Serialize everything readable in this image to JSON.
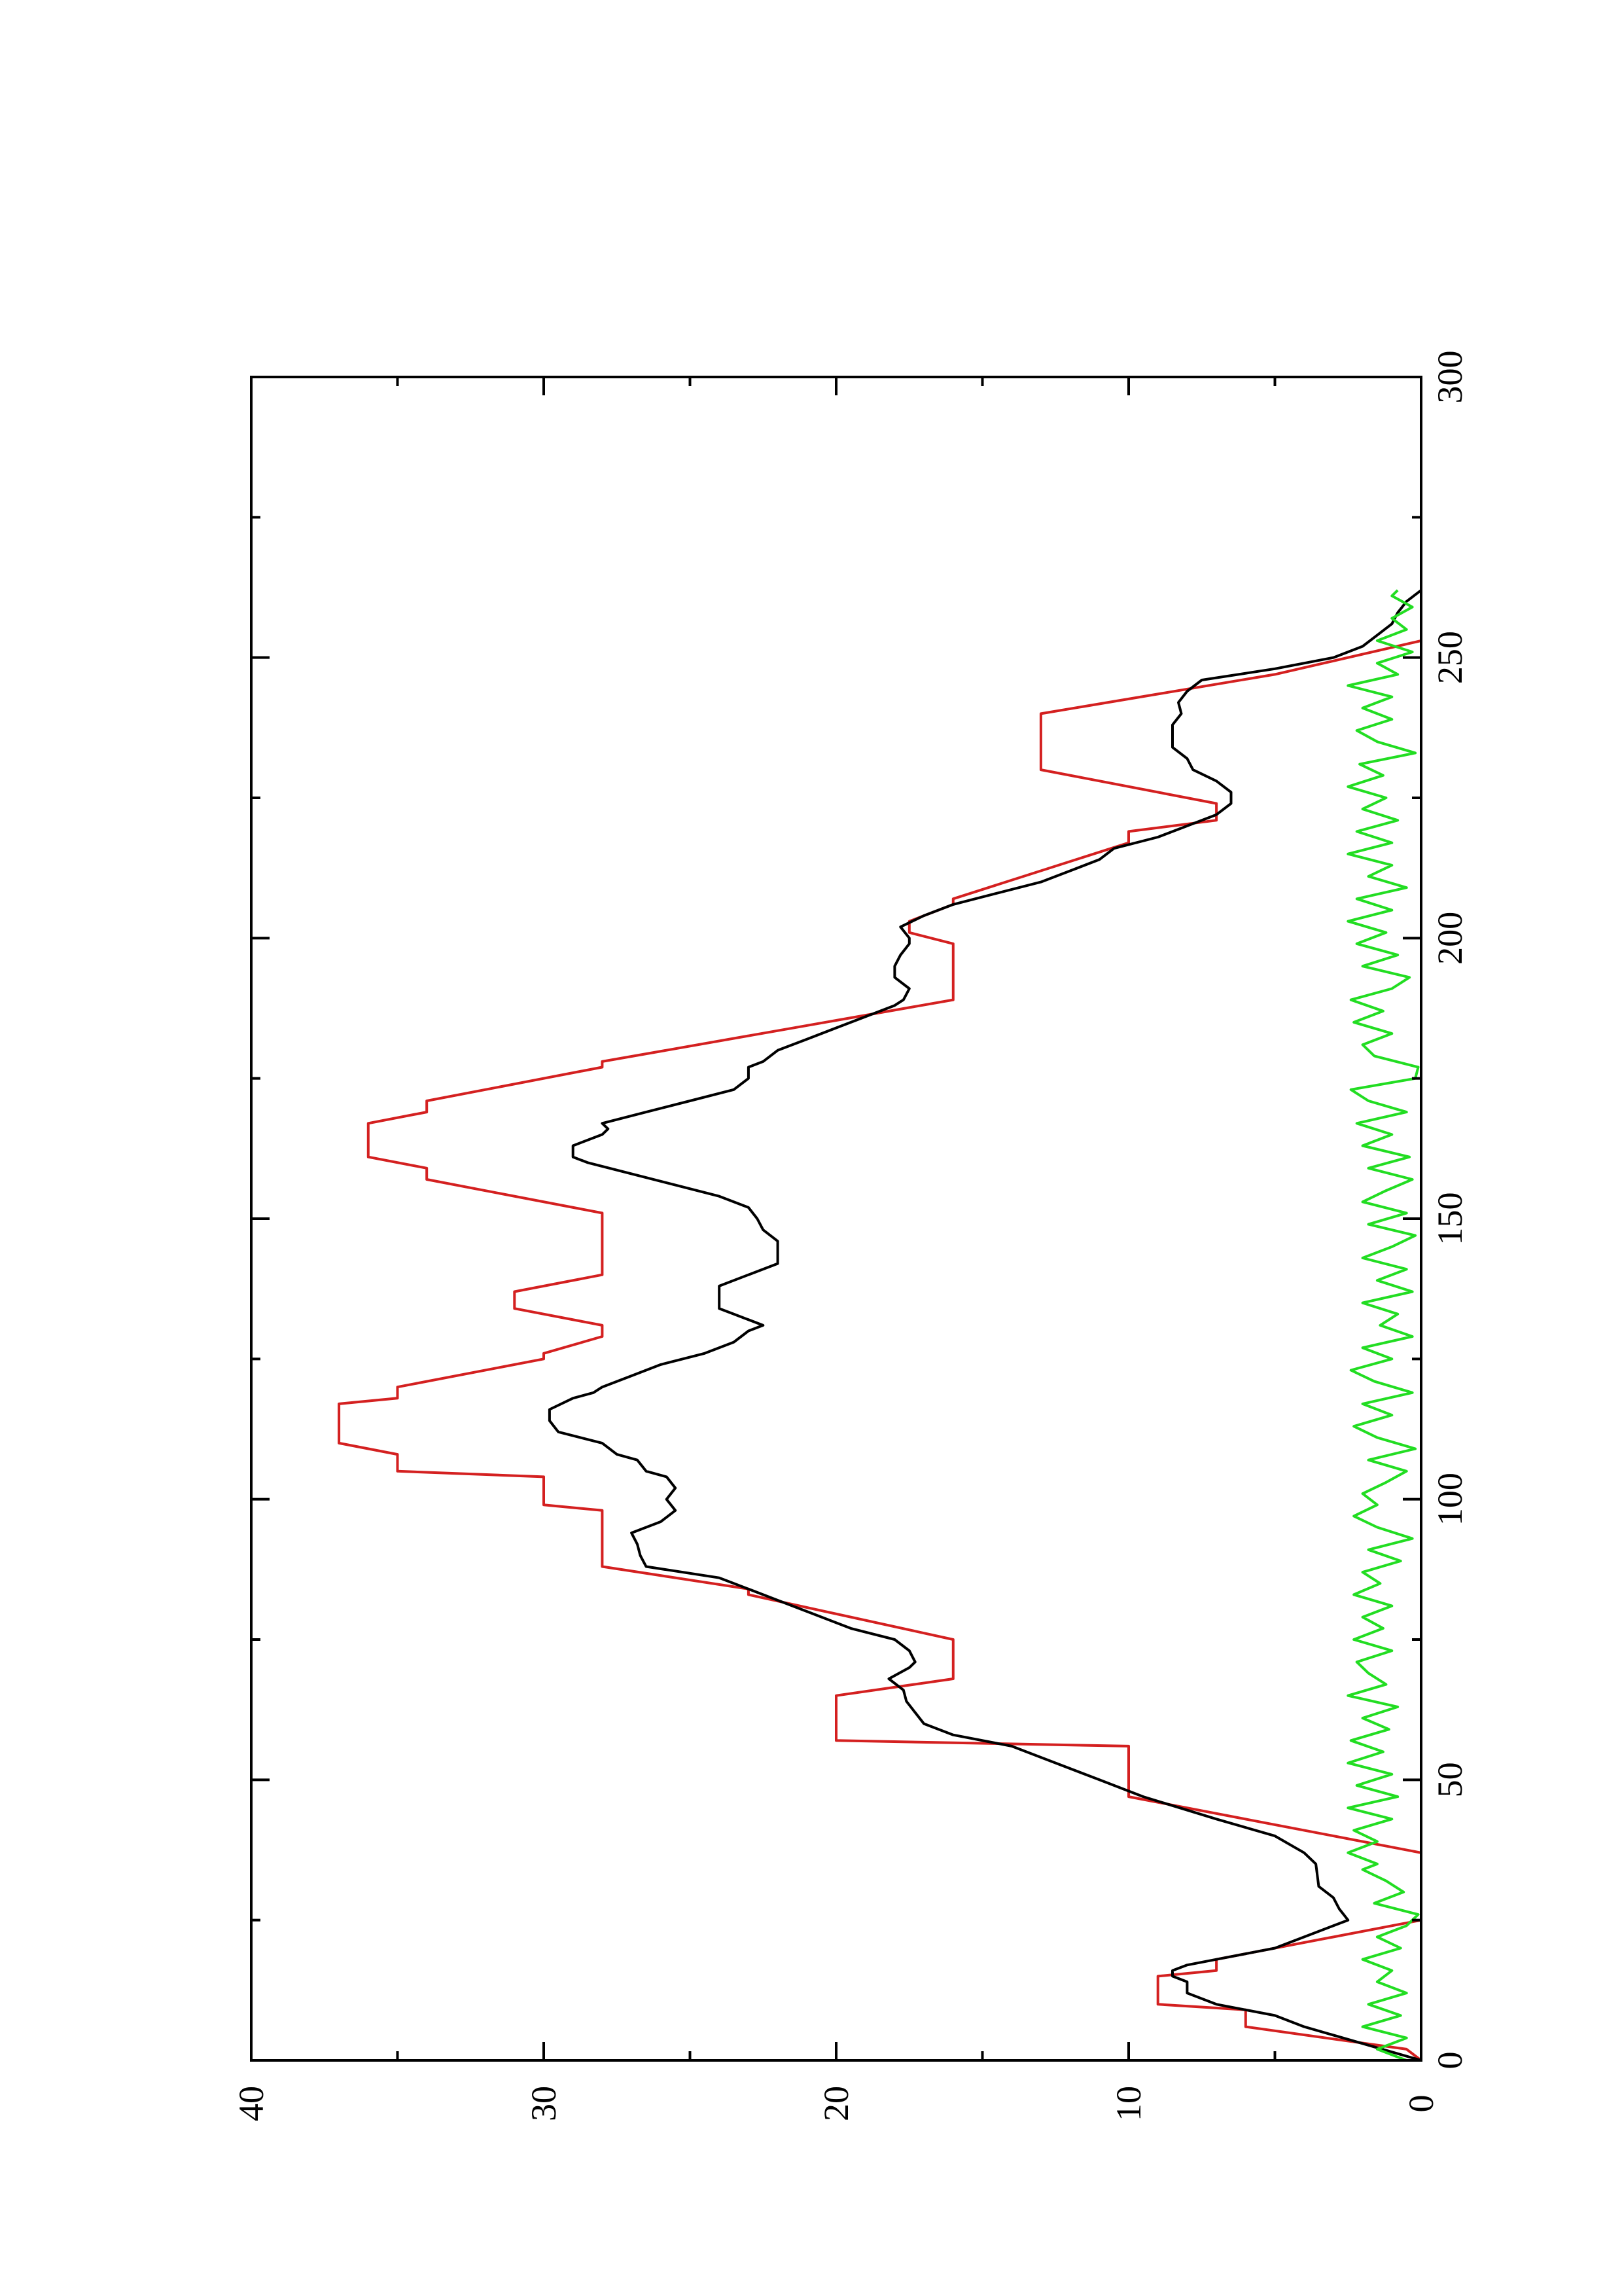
{
  "chart_data": {
    "type": "line",
    "orientation": "rotated 90 degrees counter-clockwise (x axis runs vertically, y axis runs horizontally)",
    "title": "",
    "xlabel": "",
    "ylabel": "",
    "xlim": [
      0,
      300
    ],
    "ylim": [
      0,
      40
    ],
    "xticks": [
      0,
      50,
      100,
      150,
      200,
      250,
      300
    ],
    "xtick_labels": [
      "0",
      "50",
      "100",
      "150",
      "200",
      "250",
      "300"
    ],
    "yticks": [
      0,
      10,
      20,
      30,
      40
    ],
    "ytick_labels": [
      "0",
      "10",
      "20",
      "30",
      "40"
    ],
    "grid": false,
    "legend": "none",
    "series": [
      {
        "color": "#d42020",
        "points": [
          [
            0,
            0
          ],
          [
            2,
            0.5
          ],
          [
            6,
            6
          ],
          [
            9,
            6
          ],
          [
            10,
            9
          ],
          [
            15,
            9
          ],
          [
            16,
            7
          ],
          [
            18,
            7
          ],
          [
            19,
            6
          ],
          [
            25,
            0
          ],
          [
            26,
            0
          ],
          [
            36,
            0
          ],
          [
            37,
            0
          ],
          [
            47,
            10
          ],
          [
            56,
            10
          ],
          [
            57,
            20
          ],
          [
            65,
            20
          ],
          [
            68,
            16
          ],
          [
            75,
            16
          ],
          [
            83,
            23
          ],
          [
            84,
            23
          ],
          [
            88,
            28
          ],
          [
            98,
            28
          ],
          [
            99,
            30
          ],
          [
            104,
            30
          ],
          [
            105,
            35
          ],
          [
            108,
            35
          ],
          [
            110,
            37
          ],
          [
            117,
            37
          ],
          [
            118,
            35
          ],
          [
            120,
            35
          ],
          [
            125,
            30
          ],
          [
            126,
            30
          ],
          [
            129,
            28
          ],
          [
            131,
            28
          ],
          [
            134,
            31
          ],
          [
            137,
            31
          ],
          [
            140,
            28
          ],
          [
            151,
            28
          ],
          [
            157,
            34
          ],
          [
            159,
            34
          ],
          [
            161,
            36
          ],
          [
            167,
            36
          ],
          [
            169,
            34
          ],
          [
            171,
            34
          ],
          [
            177,
            28
          ],
          [
            178,
            28
          ],
          [
            189,
            16
          ],
          [
            199,
            16
          ],
          [
            201,
            17.5
          ],
          [
            203,
            17.5
          ],
          [
            206,
            16
          ],
          [
            207,
            16
          ],
          [
            217,
            10
          ],
          [
            219,
            10
          ],
          [
            221,
            7
          ],
          [
            224,
            7
          ],
          [
            230,
            13
          ],
          [
            240,
            13
          ],
          [
            247,
            5
          ],
          [
            253,
            0
          ]
        ]
      },
      {
        "color": "#000000",
        "points": [
          [
            0,
            0
          ],
          [
            3,
            2
          ],
          [
            6,
            4
          ],
          [
            8,
            5
          ],
          [
            10,
            7
          ],
          [
            12,
            8
          ],
          [
            14,
            8
          ],
          [
            15,
            8.5
          ],
          [
            16,
            8.5
          ],
          [
            17,
            8
          ],
          [
            18,
            7
          ],
          [
            19,
            6
          ],
          [
            20,
            5
          ],
          [
            22,
            4
          ],
          [
            24,
            3
          ],
          [
            25,
            2.5
          ],
          [
            27,
            2.8
          ],
          [
            29,
            3
          ],
          [
            31,
            3.5
          ],
          [
            35,
            3.6
          ],
          [
            37,
            4
          ],
          [
            40,
            5
          ],
          [
            43,
            7
          ],
          [
            47,
            9.5
          ],
          [
            50,
            11
          ],
          [
            53,
            12.5
          ],
          [
            56,
            14
          ],
          [
            58,
            16
          ],
          [
            60,
            17
          ],
          [
            62,
            17.3
          ],
          [
            64,
            17.6
          ],
          [
            66,
            17.7
          ],
          [
            68,
            18.2
          ],
          [
            70,
            17.5
          ],
          [
            71,
            17.3
          ],
          [
            73,
            17.5
          ],
          [
            75,
            18
          ],
          [
            77,
            19.5
          ],
          [
            80,
            21
          ],
          [
            82,
            22
          ],
          [
            84,
            23
          ],
          [
            86,
            24
          ],
          [
            88,
            26.5
          ],
          [
            90,
            26.7
          ],
          [
            92,
            26.8
          ],
          [
            94,
            27
          ],
          [
            96,
            26
          ],
          [
            98,
            25.5
          ],
          [
            100,
            25.8
          ],
          [
            102,
            25.5
          ],
          [
            104,
            25.8
          ],
          [
            105,
            26.5
          ],
          [
            107,
            26.8
          ],
          [
            108,
            27.5
          ],
          [
            110,
            28
          ],
          [
            112,
            29.5
          ],
          [
            114,
            29.8
          ],
          [
            116,
            29.8
          ],
          [
            118,
            29
          ],
          [
            119,
            28.3
          ],
          [
            120,
            28
          ],
          [
            122,
            27
          ],
          [
            124,
            26
          ],
          [
            126,
            24.5
          ],
          [
            128,
            23.5
          ],
          [
            130,
            23
          ],
          [
            131,
            22.5
          ],
          [
            133,
            23.5
          ],
          [
            134,
            24
          ],
          [
            136,
            24
          ],
          [
            138,
            24
          ],
          [
            140,
            23
          ],
          [
            142,
            22
          ],
          [
            144,
            22
          ],
          [
            146,
            22
          ],
          [
            148,
            22.5
          ],
          [
            150,
            22.7
          ],
          [
            152,
            23
          ],
          [
            154,
            24
          ],
          [
            156,
            25.5
          ],
          [
            158,
            27
          ],
          [
            160,
            28.5
          ],
          [
            161,
            29
          ],
          [
            163,
            29
          ],
          [
            165,
            28
          ],
          [
            166,
            27.8
          ],
          [
            167,
            28
          ],
          [
            169,
            26.5
          ],
          [
            171,
            25
          ],
          [
            173,
            23.5
          ],
          [
            175,
            23
          ],
          [
            177,
            23
          ],
          [
            178,
            22.5
          ],
          [
            180,
            22
          ],
          [
            182,
            21
          ],
          [
            184,
            20
          ],
          [
            186,
            19
          ],
          [
            188,
            18
          ],
          [
            189,
            17.7
          ],
          [
            191,
            17.5
          ],
          [
            193,
            18
          ],
          [
            195,
            18
          ],
          [
            197,
            17.8
          ],
          [
            199,
            17.5
          ],
          [
            200,
            17.5
          ],
          [
            202,
            17.8
          ],
          [
            204,
            17
          ],
          [
            206,
            16
          ],
          [
            208,
            14.5
          ],
          [
            210,
            13
          ],
          [
            212,
            12
          ],
          [
            214,
            11
          ],
          [
            216,
            10.5
          ],
          [
            218,
            9
          ],
          [
            220,
            8
          ],
          [
            222,
            7
          ],
          [
            224,
            6.5
          ],
          [
            226,
            6.5
          ],
          [
            228,
            7
          ],
          [
            230,
            7.8
          ],
          [
            232,
            8
          ],
          [
            234,
            8.5
          ],
          [
            236,
            8.5
          ],
          [
            238,
            8.5
          ],
          [
            240,
            8.2
          ],
          [
            242,
            8.3
          ],
          [
            244,
            8
          ],
          [
            246,
            7.5
          ],
          [
            248,
            5
          ],
          [
            250,
            3
          ],
          [
            252,
            2
          ],
          [
            254,
            1.5
          ],
          [
            256,
            1
          ],
          [
            258,
            0.8
          ],
          [
            260,
            0.5
          ],
          [
            262,
            0
          ]
        ]
      },
      {
        "color": "#22dd22",
        "points": [
          [
            0,
            0.5
          ],
          [
            2,
            1.5
          ],
          [
            4,
            0.5
          ],
          [
            6,
            2
          ],
          [
            8,
            0.7
          ],
          [
            10,
            1.8
          ],
          [
            12,
            0.5
          ],
          [
            14,
            1.5
          ],
          [
            16,
            1
          ],
          [
            18,
            2
          ],
          [
            20,
            0.7
          ],
          [
            22,
            1.5
          ],
          [
            24,
            0.5
          ],
          [
            26,
            0.1
          ],
          [
            28,
            1.6
          ],
          [
            30,
            0.6
          ],
          [
            32,
            1.2
          ],
          [
            34,
            2
          ],
          [
            35,
            1.5
          ],
          [
            37,
            2.5
          ],
          [
            39,
            1.5
          ],
          [
            41,
            2.3
          ],
          [
            43,
            1
          ],
          [
            45,
            2.5
          ],
          [
            47,
            0.8
          ],
          [
            49,
            2.2
          ],
          [
            51,
            1
          ],
          [
            53,
            2.5
          ],
          [
            55,
            1.3
          ],
          [
            57,
            2.4
          ],
          [
            59,
            1.1
          ],
          [
            61,
            2
          ],
          [
            63,
            0.8
          ],
          [
            65,
            2.5
          ],
          [
            67,
            1.2
          ],
          [
            69,
            1.8
          ],
          [
            71,
            2.2
          ],
          [
            73,
            1
          ],
          [
            75,
            2.3
          ],
          [
            77,
            1.3
          ],
          [
            79,
            2
          ],
          [
            81,
            1
          ],
          [
            83,
            2.3
          ],
          [
            85,
            1.4
          ],
          [
            87,
            2
          ],
          [
            89,
            0.7
          ],
          [
            91,
            1.8
          ],
          [
            93,
            0.3
          ],
          [
            95,
            1.5
          ],
          [
            97,
            2.3
          ],
          [
            99,
            1.5
          ],
          [
            101,
            2
          ],
          [
            103,
            1.2
          ],
          [
            105,
            0.5
          ],
          [
            107,
            1.8
          ],
          [
            109,
            0.2
          ],
          [
            111,
            1.5
          ],
          [
            113,
            2.3
          ],
          [
            115,
            1
          ],
          [
            117,
            2
          ],
          [
            119,
            0.3
          ],
          [
            121,
            1.6
          ],
          [
            123,
            2.4
          ],
          [
            125,
            1
          ],
          [
            127,
            2
          ],
          [
            129,
            0.3
          ],
          [
            131,
            1.4
          ],
          [
            133,
            0.8
          ],
          [
            135,
            2
          ],
          [
            137,
            0.3
          ],
          [
            139,
            1.5
          ],
          [
            141,
            0.5
          ],
          [
            143,
            2
          ],
          [
            145,
            1
          ],
          [
            147,
            0.2
          ],
          [
            149,
            1.8
          ],
          [
            151,
            0.5
          ],
          [
            153,
            2
          ],
          [
            155,
            1.2
          ],
          [
            157,
            0.3
          ],
          [
            159,
            1.8
          ],
          [
            161,
            0.4
          ],
          [
            163,
            2
          ],
          [
            165,
            1
          ],
          [
            167,
            2.2
          ],
          [
            169,
            0.5
          ],
          [
            171,
            1.8
          ],
          [
            173,
            2.4
          ],
          [
            175,
            0.2
          ],
          [
            177,
            0.1
          ],
          [
            179,
            1.6
          ],
          [
            181,
            2
          ],
          [
            183,
            1
          ],
          [
            185,
            2.3
          ],
          [
            187,
            1.3
          ],
          [
            189,
            2.4
          ],
          [
            191,
            1
          ],
          [
            193,
            0.4
          ],
          [
            195,
            2
          ],
          [
            197,
            0.8
          ],
          [
            199,
            2.2
          ],
          [
            201,
            1.2
          ],
          [
            203,
            2.5
          ],
          [
            205,
            1
          ],
          [
            207,
            2.2
          ],
          [
            209,
            0.5
          ],
          [
            211,
            1.8
          ],
          [
            213,
            1
          ],
          [
            215,
            2.5
          ],
          [
            217,
            1
          ],
          [
            219,
            2.2
          ],
          [
            221,
            0.8
          ],
          [
            223,
            2
          ],
          [
            225,
            1.2
          ],
          [
            227,
            2.5
          ],
          [
            229,
            1.3
          ],
          [
            231,
            2.1
          ],
          [
            233,
            0.2
          ],
          [
            235,
            1.5
          ],
          [
            237,
            2.2
          ],
          [
            239,
            1
          ],
          [
            241,
            2
          ],
          [
            243,
            1
          ],
          [
            245,
            2.5
          ],
          [
            247,
            0.8
          ],
          [
            249,
            1.5
          ],
          [
            251,
            0.3
          ],
          [
            253,
            1.5
          ],
          [
            255,
            0.5
          ],
          [
            257,
            1
          ],
          [
            259,
            0.3
          ],
          [
            261,
            1
          ],
          [
            262,
            0.8
          ]
        ]
      }
    ]
  }
}
